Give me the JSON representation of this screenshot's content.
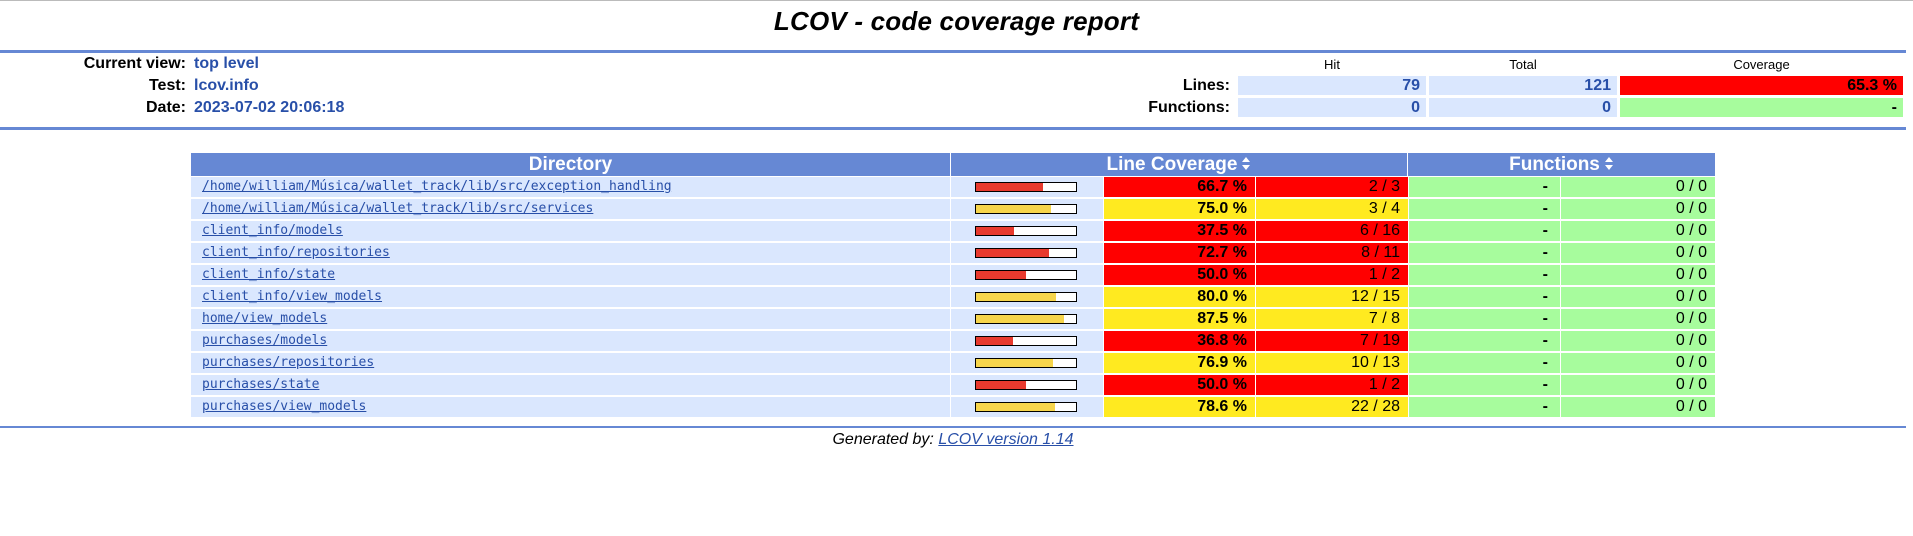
{
  "title": "LCOV - code coverage report",
  "header": {
    "current_view_label": "Current view:",
    "current_view_value": "top level",
    "test_label": "Test:",
    "test_value": "lcov.info",
    "date_label": "Date:",
    "date_value": "2023-07-02 20:06:18"
  },
  "summary": {
    "col_hit": "Hit",
    "col_total": "Total",
    "col_coverage": "Coverage",
    "lines": {
      "label": "Lines:",
      "hit": "79",
      "total": "121",
      "coverage": "65.3 %",
      "level": "lo"
    },
    "functions": {
      "label": "Functions:",
      "hit": "0",
      "total": "0",
      "coverage": "-",
      "level": "hi"
    }
  },
  "table": {
    "col_directory": "Directory",
    "col_line_coverage": "Line Coverage",
    "col_functions": "Functions",
    "rows": [
      {
        "dir": "/home/william/Música/wallet_track/lib/src/exception_handling",
        "pct": "66.7 %",
        "ratio": "2 / 3",
        "level": "lo",
        "fill": 0.667,
        "fpct": "-",
        "fratio": "0 / 0"
      },
      {
        "dir": "/home/william/Música/wallet_track/lib/src/services",
        "pct": "75.0 %",
        "ratio": "3 / 4",
        "level": "med",
        "fill": 0.75,
        "fpct": "-",
        "fratio": "0 / 0"
      },
      {
        "dir": "client_info/models",
        "pct": "37.5 %",
        "ratio": "6 / 16",
        "level": "lo",
        "fill": 0.375,
        "fpct": "-",
        "fratio": "0 / 0"
      },
      {
        "dir": "client_info/repositories",
        "pct": "72.7 %",
        "ratio": "8 / 11",
        "level": "lo",
        "fill": 0.727,
        "fpct": "-",
        "fratio": "0 / 0"
      },
      {
        "dir": "client_info/state",
        "pct": "50.0 %",
        "ratio": "1 / 2",
        "level": "lo",
        "fill": 0.5,
        "fpct": "-",
        "fratio": "0 / 0"
      },
      {
        "dir": "client_info/view_models",
        "pct": "80.0 %",
        "ratio": "12 / 15",
        "level": "med",
        "fill": 0.8,
        "fpct": "-",
        "fratio": "0 / 0"
      },
      {
        "dir": "home/view_models",
        "pct": "87.5 %",
        "ratio": "7 / 8",
        "level": "med",
        "fill": 0.875,
        "fpct": "-",
        "fratio": "0 / 0"
      },
      {
        "dir": "purchases/models",
        "pct": "36.8 %",
        "ratio": "7 / 19",
        "level": "lo",
        "fill": 0.368,
        "fpct": "-",
        "fratio": "0 / 0"
      },
      {
        "dir": "purchases/repositories",
        "pct": "76.9 %",
        "ratio": "10 / 13",
        "level": "med",
        "fill": 0.769,
        "fpct": "-",
        "fratio": "0 / 0"
      },
      {
        "dir": "purchases/state",
        "pct": "50.0 %",
        "ratio": "1 / 2",
        "level": "lo",
        "fill": 0.5,
        "fpct": "-",
        "fratio": "0 / 0"
      },
      {
        "dir": "purchases/view_models",
        "pct": "78.6 %",
        "ratio": "22 / 28",
        "level": "med",
        "fill": 0.786,
        "fpct": "-",
        "fratio": "0 / 0"
      }
    ]
  },
  "footer": {
    "prefix": "Generated by:",
    "link": "LCOV version 1.14"
  },
  "colors": {
    "rule": "#6688d4",
    "link": "#284fa8",
    "cell_bg": "#dae7fe",
    "coverage_low": "#ff0000",
    "coverage_medium": "#ffea20",
    "coverage_high": "#a7fc9d"
  },
  "icons": {
    "sort": "sort-arrows-icon"
  }
}
